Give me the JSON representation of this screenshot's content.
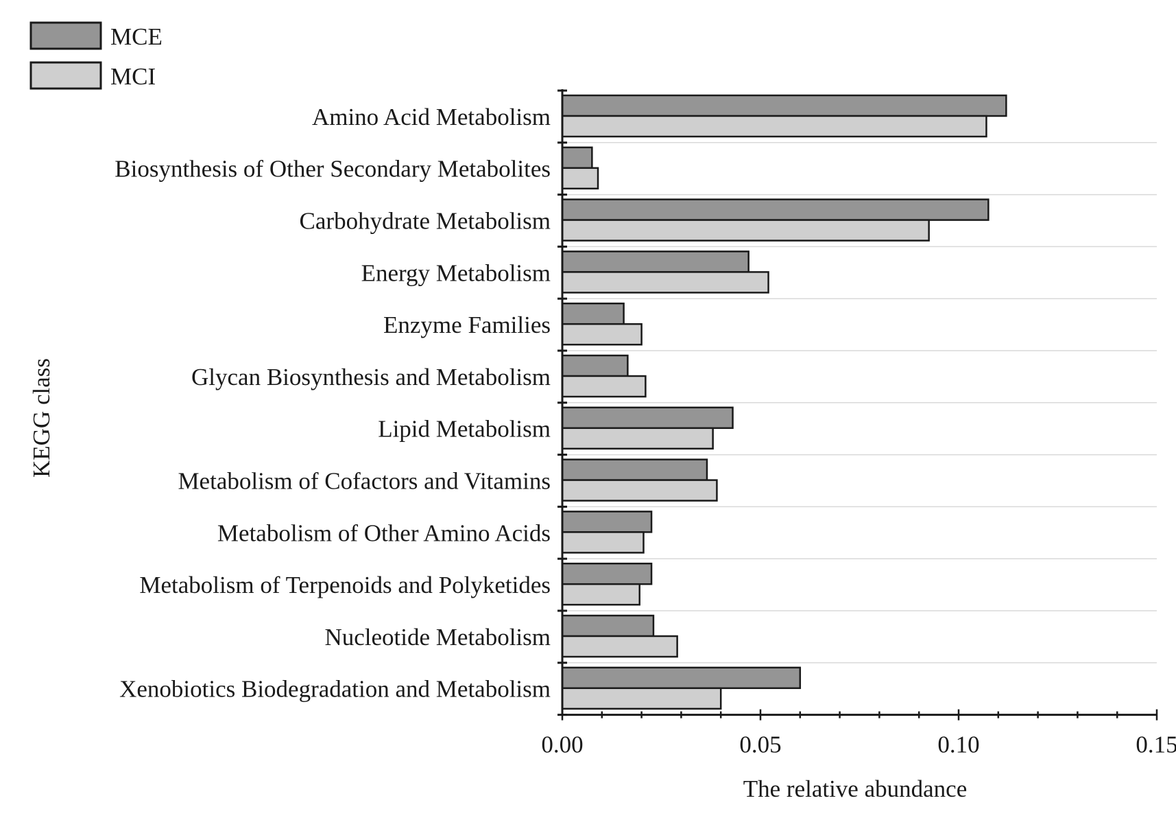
{
  "chart_data": {
    "type": "bar",
    "orientation": "horizontal",
    "categories": [
      "Amino Acid Metabolism",
      "Biosynthesis of Other Secondary Metabolites",
      "Carbohydrate Metabolism",
      "Energy Metabolism",
      "Enzyme Families",
      "Glycan Biosynthesis and Metabolism",
      "Lipid Metabolism",
      "Metabolism of Cofactors and Vitamins",
      "Metabolism of Other Amino Acids",
      "Metabolism of Terpenoids and Polyketides",
      "Nucleotide Metabolism",
      "Xenobiotics Biodegradation and Metabolism"
    ],
    "series": [
      {
        "name": "MCE",
        "color": "#959595",
        "values": [
          0.112,
          0.0075,
          0.1075,
          0.047,
          0.0155,
          0.0165,
          0.043,
          0.0365,
          0.0225,
          0.0225,
          0.023,
          0.06
        ]
      },
      {
        "name": "MCI",
        "color": "#cfcfcf",
        "values": [
          0.107,
          0.009,
          0.0925,
          0.052,
          0.02,
          0.021,
          0.038,
          0.039,
          0.0205,
          0.0195,
          0.029,
          0.04
        ]
      }
    ],
    "xlabel": "The relative abundance",
    "ylabel": "KEGG class",
    "xlim": [
      0,
      0.15
    ],
    "x_ticks": [
      "0.00",
      "0.05",
      "0.10",
      "0.15"
    ],
    "grid": "horizontal lines between categories",
    "legend_position": "top-left",
    "edge_color": "#1a1a1a",
    "grid_color": "#d9d9d9"
  }
}
